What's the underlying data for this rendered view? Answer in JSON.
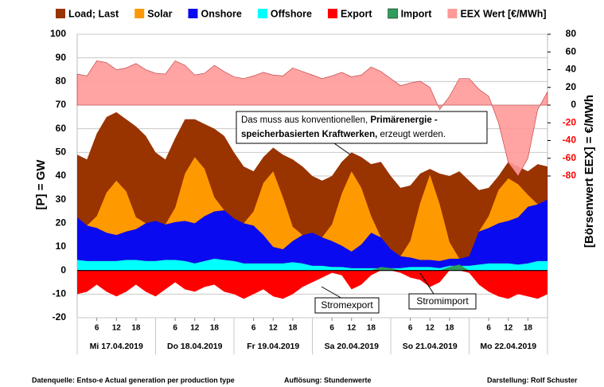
{
  "chart_data": {
    "type": "area",
    "legend": "top",
    "grid": true,
    "ylabel": "[P] = GW",
    "y2label": "[Börsenwert  EEX]  = €/MWh",
    "xlim": [
      0,
      144
    ],
    "ylim": [
      -20,
      100
    ],
    "yticks": [
      -20,
      -10,
      0,
      10,
      20,
      30,
      40,
      50,
      60,
      70,
      80,
      90,
      100
    ],
    "y2lim": [
      -240,
      80
    ],
    "y2ticks": [
      -80,
      -60,
      -40,
      -20,
      0,
      20,
      40,
      60,
      80
    ],
    "y2tick_negative_color": "#ff0000",
    "xticks": [
      {
        "value": 6,
        "label": "6"
      },
      {
        "value": 12,
        "label": "12"
      },
      {
        "value": 18,
        "label": "18"
      },
      {
        "value": 30,
        "label": "6"
      },
      {
        "value": 36,
        "label": "12"
      },
      {
        "value": 42,
        "label": "18"
      },
      {
        "value": 54,
        "label": "6"
      },
      {
        "value": 60,
        "label": "12"
      },
      {
        "value": 66,
        "label": "18"
      },
      {
        "value": 78,
        "label": "6"
      },
      {
        "value": 84,
        "label": "12"
      },
      {
        "value": 90,
        "label": "18"
      },
      {
        "value": 102,
        "label": "6"
      },
      {
        "value": 108,
        "label": "12"
      },
      {
        "value": 114,
        "label": "18"
      },
      {
        "value": 126,
        "label": "6"
      },
      {
        "value": 132,
        "label": "12"
      },
      {
        "value": 138,
        "label": "18"
      }
    ],
    "days": [
      "Mi 17.04.2019",
      "Do 18.04.2019",
      "Fr 19.04.2019",
      "Sa 20.04.2019",
      "So 21.04.2019",
      "Mo 22.04.2019"
    ],
    "x": [
      0,
      3,
      6,
      9,
      12,
      15,
      18,
      21,
      24,
      27,
      30,
      33,
      36,
      39,
      42,
      45,
      48,
      51,
      54,
      57,
      60,
      63,
      66,
      69,
      72,
      75,
      78,
      81,
      84,
      87,
      90,
      93,
      96,
      99,
      102,
      105,
      108,
      111,
      114,
      117,
      120,
      123,
      126,
      129,
      132,
      135,
      138,
      141,
      144
    ],
    "series": [
      {
        "name": "Load; Last",
        "color": "#993300",
        "values": [
          49,
          47,
          58,
          65,
          67,
          64,
          61,
          57,
          50,
          47,
          56,
          64,
          64,
          62,
          60,
          57,
          50,
          44,
          42,
          48,
          52,
          49,
          47,
          44,
          40,
          38,
          40,
          46,
          50,
          48,
          45,
          46,
          40,
          35,
          36,
          41,
          43,
          41,
          40,
          42,
          38,
          34,
          35,
          40,
          46,
          44,
          42,
          45,
          44
        ]
      },
      {
        "name": "Solar",
        "color": "#ff9900",
        "values": [
          0,
          0,
          5,
          17,
          23,
          17,
          5,
          0,
          0,
          0,
          6,
          20,
          28,
          20,
          6,
          0,
          0,
          0,
          6,
          22,
          32,
          22,
          6,
          0,
          0,
          0,
          7,
          22,
          34,
          24,
          7,
          0,
          0,
          0,
          7,
          24,
          36,
          24,
          7,
          0,
          0,
          0,
          5,
          14,
          18,
          14,
          5,
          0,
          0
        ]
      },
      {
        "name": "Onshore",
        "color": "#0a0af0",
        "values": [
          18,
          15,
          14,
          12,
          11,
          12,
          13,
          16,
          17,
          15,
          16,
          17,
          17,
          19,
          20,
          21,
          18,
          17,
          16,
          12,
          7,
          6,
          9,
          12,
          14,
          12,
          11,
          9,
          7,
          10,
          15,
          13,
          8,
          5,
          4,
          3,
          3,
          3,
          3,
          3,
          4,
          14,
          15,
          17,
          18,
          20,
          24,
          24,
          26
        ]
      },
      {
        "name": "Offshore",
        "color": "#00ffff",
        "values": [
          4.5,
          4,
          4,
          4,
          4,
          4.5,
          4.5,
          4,
          4,
          4.5,
          4.5,
          4,
          3,
          4,
          5,
          4.5,
          4,
          3,
          3,
          3,
          3,
          3,
          3.5,
          3,
          2,
          2,
          1.5,
          1.5,
          1,
          1,
          1,
          1,
          1,
          1,
          1.5,
          1.5,
          1.5,
          1,
          2,
          2,
          2,
          2.5,
          3,
          3,
          3,
          2.5,
          3,
          4,
          4
        ]
      },
      {
        "name": "Export",
        "color": "#ff0000",
        "values": [
          -10,
          -9,
          -6,
          -9,
          -11,
          -9,
          -6,
          -9,
          -11,
          -8,
          -5,
          -8,
          -9,
          -7,
          -6,
          -9,
          -10,
          -12,
          -10,
          -8,
          -11,
          -12,
          -10,
          -7,
          -5,
          -3,
          -1,
          -2,
          -8,
          -6,
          -2,
          0,
          0,
          -1,
          -3,
          -4,
          -7,
          -5,
          0,
          0,
          -1,
          -6,
          -9,
          -11,
          -12,
          -10,
          -11,
          -12,
          -10
        ]
      },
      {
        "name": "Import",
        "color": "#2e9e5b",
        "values": [
          0,
          0,
          0,
          0,
          0,
          0,
          0,
          0,
          0,
          0,
          0,
          0,
          0,
          0,
          0,
          0,
          0,
          0,
          0,
          0,
          0,
          0,
          0,
          0,
          0,
          0,
          0,
          0,
          0,
          0,
          0,
          1.5,
          1,
          0,
          0,
          0,
          0,
          0,
          1.5,
          2.5,
          0,
          0,
          0,
          0,
          0,
          0,
          0,
          0,
          0
        ]
      },
      {
        "name": "EEX Wert [€/MWh]",
        "color": "#ff9999",
        "axis": "y2",
        "values": [
          35,
          33,
          50,
          48,
          40,
          42,
          47,
          40,
          36,
          35,
          50,
          45,
          34,
          36,
          45,
          38,
          32,
          30,
          33,
          37,
          34,
          33,
          42,
          38,
          34,
          30,
          33,
          37,
          32,
          34,
          43,
          38,
          30,
          22,
          25,
          27,
          20,
          -5,
          10,
          30,
          30,
          18,
          10,
          -20,
          -65,
          -80,
          -60,
          -5,
          15
        ]
      }
    ],
    "annotation": {
      "line1": [
        "Das muss aus konventionellen, ",
        "Primärenergie -"
      ],
      "line2": [
        "speicherbasierten Kraftwerken,",
        " erzeugt werden."
      ]
    },
    "callouts": [
      "Stromexport",
      "Stromimport"
    ],
    "footer": [
      "Datenquelle: Entso-e  Actual generation per production type",
      "Auflösung: Stundenwerte",
      "Darstellung:  Rolf Schuster"
    ]
  }
}
